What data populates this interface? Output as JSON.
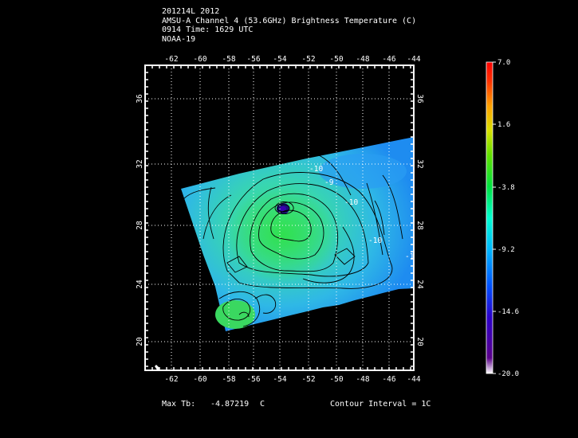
{
  "title": {
    "line1": "201214L 2012",
    "line2": "AMSU-A Channel 4 (53.6GHz) Brightness Temperature (C)",
    "line3": "0914 Time: 1629 UTC",
    "line4": "NOAA-19"
  },
  "axes": {
    "lon_ticks": [
      "-62",
      "-60",
      "-58",
      "-56",
      "-54",
      "-52",
      "-50",
      "-48",
      "-46",
      "-44"
    ],
    "lat_ticks": [
      "36",
      "32",
      "28",
      "24",
      "20"
    ]
  },
  "colorbar": {
    "labels": [
      "7.0",
      "1.6",
      "-3.8",
      "-9.2",
      "-14.6",
      "-20.0"
    ]
  },
  "contour_labels": [
    "-10",
    "-9",
    "-10",
    "-11",
    "-10"
  ],
  "footer": {
    "max_tb_label": "Max Tb:",
    "max_tb_value": "-4.87219",
    "max_tb_unit": "C",
    "contour_interval": "Contour Interval = 1C"
  }
}
